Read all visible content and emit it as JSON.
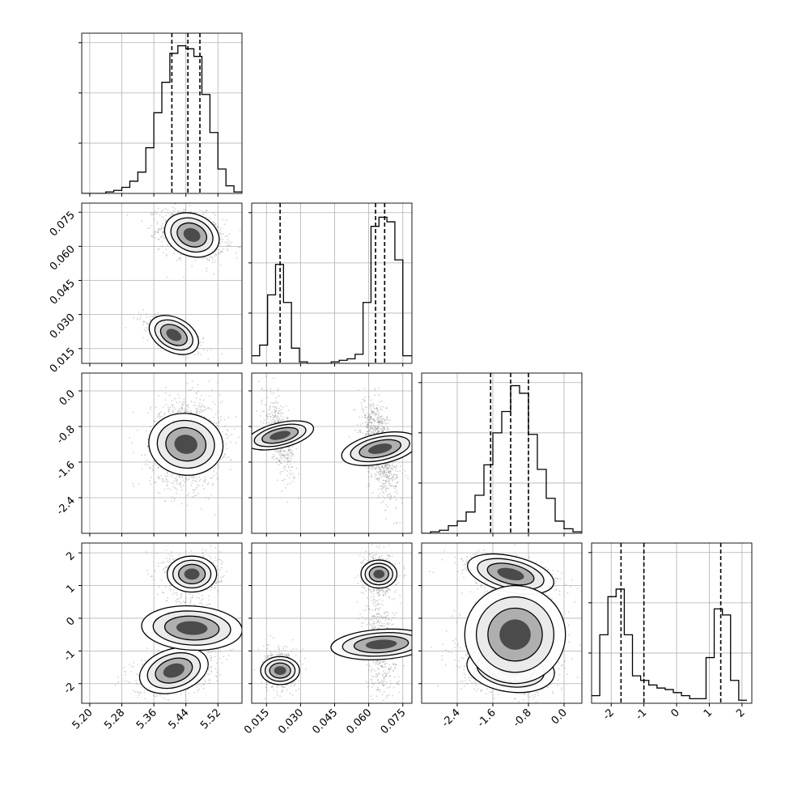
{
  "chart_data": {
    "type": "corner",
    "title": "",
    "grid": true,
    "colors": {
      "line": "#000000",
      "grid": "#b0b0b0",
      "scatter": "#808080",
      "background": "#ffffff"
    },
    "parameters": [
      {
        "range": [
          5.18,
          5.58
        ],
        "ticks": [
          "5.20",
          "5.28",
          "5.36",
          "5.44",
          "5.52"
        ],
        "tick_values": [
          5.2,
          5.28,
          5.36,
          5.44,
          5.52
        ],
        "quantiles": [
          5.405,
          5.445,
          5.475
        ],
        "hist_max": 1,
        "hist_edges": [
          5.18,
          5.2,
          5.22,
          5.24,
          5.26,
          5.28,
          5.3,
          5.32,
          5.34,
          5.36,
          5.38,
          5.4,
          5.42,
          5.44,
          5.46,
          5.48,
          5.5,
          5.52,
          5.54,
          5.56,
          5.58
        ],
        "hist": [
          0,
          0,
          0,
          0.01,
          0.02,
          0.04,
          0.08,
          0.14,
          0.3,
          0.53,
          0.73,
          0.92,
          0.97,
          0.95,
          0.9,
          0.65,
          0.4,
          0.16,
          0.05,
          0.01
        ]
      },
      {
        "range": [
          0.0085,
          0.079
        ],
        "ticks": [
          "0.015",
          "0.030",
          "0.045",
          "0.060",
          "0.075"
        ],
        "tick_values": [
          0.015,
          0.03,
          0.045,
          0.06,
          0.075
        ],
        "quantiles": [
          0.021,
          0.063,
          0.067
        ],
        "hist_max": 1,
        "hist_edges": [
          0.0085,
          0.012,
          0.0155,
          0.019,
          0.0225,
          0.026,
          0.0295,
          0.033,
          0.0365,
          0.04,
          0.0435,
          0.047,
          0.0505,
          0.054,
          0.0575,
          0.061,
          0.0645,
          0.068,
          0.0715,
          0.075,
          0.079
        ],
        "hist": [
          0.05,
          0.12,
          0.45,
          0.65,
          0.4,
          0.1,
          0.01,
          0,
          0,
          0,
          0.01,
          0.02,
          0.03,
          0.06,
          0.4,
          0.9,
          0.96,
          0.93,
          0.68,
          0.05
        ]
      },
      {
        "range": [
          -3.2,
          0.4
        ],
        "ticks": [
          "-2.4",
          "-1.6",
          "-0.8",
          "0.0"
        ],
        "tick_values": [
          -2.4,
          -1.6,
          -0.8,
          0.0
        ],
        "quantiles": [
          -1.65,
          -1.2,
          -0.8
        ],
        "hist_max": 1,
        "hist_edges": [
          -3.2,
          -3.0,
          -2.8,
          -2.6,
          -2.4,
          -2.2,
          -2.0,
          -1.8,
          -1.6,
          -1.4,
          -1.2,
          -1.0,
          -0.8,
          -0.6,
          -0.4,
          -0.2,
          0.0,
          0.2,
          0.4
        ],
        "hist": [
          0,
          0.01,
          0.02,
          0.05,
          0.08,
          0.14,
          0.25,
          0.45,
          0.66,
          0.8,
          0.97,
          0.92,
          0.65,
          0.42,
          0.23,
          0.08,
          0.03,
          0.01
        ]
      },
      {
        "range": [
          -2.6,
          2.3
        ],
        "ticks": [
          "-2",
          "-1",
          "0",
          "1",
          "2"
        ],
        "tick_values": [
          -2,
          -1,
          0,
          1,
          2
        ],
        "quantiles": [
          -1.7,
          -1.0,
          1.35
        ],
        "hist_max": 1,
        "hist_edges": [
          -2.6,
          -2.35,
          -2.1,
          -1.85,
          -1.6,
          -1.35,
          -1.1,
          -0.85,
          -0.6,
          -0.35,
          -0.1,
          0.15,
          0.4,
          0.65,
          0.9,
          1.15,
          1.4,
          1.65,
          1.9,
          2.15
        ],
        "hist": [
          0.05,
          0.45,
          0.7,
          0.75,
          0.45,
          0.18,
          0.15,
          0.12,
          0.1,
          0.09,
          0.07,
          0.05,
          0.03,
          0.03,
          0.3,
          0.62,
          0.58,
          0.15,
          0.02
        ]
      }
    ],
    "blobs": {
      "1_0": [
        {
          "cx": 5.455,
          "cy": 0.065,
          "sx": 0.032,
          "sy": 0.0042,
          "rho": -0.3,
          "w": 0.7
        },
        {
          "cx": 5.41,
          "cy": 0.021,
          "sx": 0.03,
          "sy": 0.0034,
          "rho": -0.7,
          "w": 0.3
        }
      ],
      "2_0": [
        {
          "cx": 5.44,
          "cy": -1.2,
          "sx": 0.035,
          "sy": 0.38,
          "rho": 0.05,
          "w": 1
        }
      ],
      "2_1": [
        {
          "cx": 0.021,
          "cy": -1.0,
          "sx": 0.0025,
          "sy": 0.35,
          "rho": -0.6,
          "w": 0.3
        },
        {
          "cx": 0.065,
          "cy": -1.3,
          "sx": 0.003,
          "sy": 0.4,
          "rho": -0.5,
          "w": 0.7
        }
      ],
      "3_0": [
        {
          "cx": 5.455,
          "cy": 1.35,
          "sx": 0.028,
          "sy": 0.25,
          "rho": 0,
          "w": 0.35
        },
        {
          "cx": 5.41,
          "cy": -1.6,
          "sx": 0.04,
          "sy": 0.3,
          "rho": 0.35,
          "w": 0.45
        },
        {
          "cx": 5.455,
          "cy": -0.3,
          "sx": 0.025,
          "sy": 0.7,
          "rho": 0.1,
          "w": 0.2
        }
      ],
      "3_1": [
        {
          "cx": 0.0645,
          "cy": 1.35,
          "sx": 0.0028,
          "sy": 0.25,
          "rho": 0,
          "w": 0.35
        },
        {
          "cx": 0.021,
          "cy": -1.6,
          "sx": 0.0028,
          "sy": 0.27,
          "rho": 0,
          "w": 0.3
        },
        {
          "cx": 0.0655,
          "cy": -0.8,
          "sx": 0.003,
          "sy": 0.7,
          "rho": -0.2,
          "w": 0.35
        }
      ],
      "3_2": [
        {
          "cx": -1.2,
          "cy": 1.35,
          "sx": 0.45,
          "sy": 0.25,
          "rho": -0.5,
          "w": 0.35
        },
        {
          "cx": -1.2,
          "cy": -1.55,
          "sx": 0.45,
          "sy": 0.32,
          "rho": -0.2,
          "w": 0.45
        },
        {
          "cx": -1.1,
          "cy": -0.5,
          "sx": 0.5,
          "sy": 0.7,
          "rho": 0,
          "w": 0.2
        }
      ]
    }
  }
}
